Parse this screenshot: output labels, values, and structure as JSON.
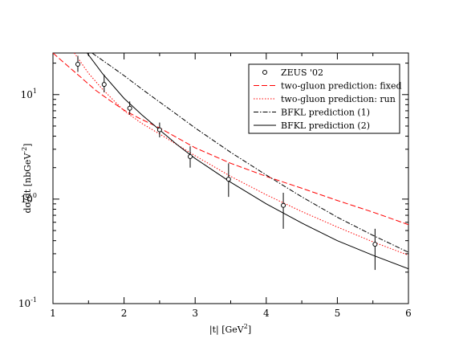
{
  "chart_data": {
    "type": "line",
    "title": "",
    "xlabel": "|t|    [GeV",
    "xlabel_sup": "2",
    "xlabel_end": "]",
    "ylabel": "dσ/dt   [nbGeV",
    "ylabel_sup": "-2",
    "ylabel_end": "]",
    "xlim": [
      1,
      6
    ],
    "ylim": [
      0.1,
      25
    ],
    "yscale": "log",
    "x_ticks": [
      1,
      2,
      3,
      4,
      5,
      6
    ],
    "y_ticks": [
      {
        "value": 0.1,
        "base": "10",
        "exp": "-1"
      },
      {
        "value": 1,
        "base": "10",
        "exp": "0"
      },
      {
        "value": 10,
        "base": "10",
        "exp": "1"
      }
    ],
    "grid": false,
    "legend_position": "top-right",
    "data_points": {
      "name": "ZEUS '02",
      "color": "#000000",
      "points": [
        {
          "x": 1.35,
          "y": 19.5,
          "lo": 16.5,
          "hi": 23.5
        },
        {
          "x": 1.72,
          "y": 12.5,
          "lo": 10.5,
          "hi": 15.5
        },
        {
          "x": 2.08,
          "y": 7.4,
          "lo": 6.4,
          "hi": 8.6
        },
        {
          "x": 2.5,
          "y": 4.6,
          "lo": 3.9,
          "hi": 5.4
        },
        {
          "x": 2.93,
          "y": 2.55,
          "lo": 2.0,
          "hi": 3.2
        },
        {
          "x": 3.47,
          "y": 1.55,
          "lo": 1.05,
          "hi": 2.2
        },
        {
          "x": 4.24,
          "y": 0.87,
          "lo": 0.52,
          "hi": 1.15
        },
        {
          "x": 5.53,
          "y": 0.37,
          "lo": 0.21,
          "hi": 0.52
        }
      ]
    },
    "series": [
      {
        "name": "two-gluon prediction: fixed",
        "color": "#ff0000",
        "style": "dashed",
        "x": [
          1.0,
          1.2,
          1.4,
          1.6,
          1.8,
          2.0,
          2.2,
          2.5,
          3.0,
          3.5,
          4.0,
          4.5,
          5.0,
          5.5,
          6.0
        ],
        "y": [
          25,
          19,
          14.5,
          11,
          8.8,
          7.1,
          6.0,
          4.8,
          3.1,
          2.2,
          1.65,
          1.27,
          0.97,
          0.75,
          0.57
        ]
      },
      {
        "name": "two-gluon prediction: run",
        "color": "#ff0000",
        "style": "dotted",
        "x": [
          1.3,
          1.5,
          1.7,
          2.0,
          2.25,
          2.5,
          3.0,
          3.5,
          4.0,
          4.5,
          5.0,
          5.5,
          6.0
        ],
        "y": [
          25,
          16,
          11.2,
          7.0,
          5.3,
          4.2,
          2.6,
          1.65,
          1.1,
          0.76,
          0.54,
          0.39,
          0.29
        ]
      },
      {
        "name": "BFKL prediction (1)",
        "color": "#000000",
        "style": "dashdot",
        "x": [
          1.55,
          1.8,
          2.0,
          2.25,
          2.5,
          2.75,
          3.0,
          3.5,
          4.0,
          4.5,
          5.0,
          5.5,
          6.0
        ],
        "y": [
          25,
          19,
          15.2,
          11.3,
          8.5,
          6.4,
          4.8,
          2.8,
          1.7,
          1.05,
          0.67,
          0.45,
          0.31
        ]
      },
      {
        "name": "BFKL prediction (2)",
        "color": "#000000",
        "style": "solid",
        "x": [
          1.48,
          1.7,
          2.0,
          2.25,
          2.5,
          2.75,
          3.0,
          3.5,
          4.0,
          4.5,
          5.0,
          5.5,
          6.0
        ],
        "y": [
          25,
          15.8,
          9.2,
          6.4,
          4.6,
          3.3,
          2.45,
          1.45,
          0.9,
          0.59,
          0.4,
          0.29,
          0.215
        ]
      }
    ]
  }
}
